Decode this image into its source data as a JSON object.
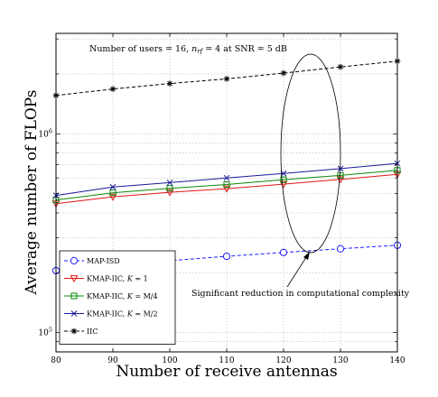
{
  "chart_data": {
    "type": "line",
    "xlabel": "Number of receive antennas",
    "ylabel": "Average number of FLOPs",
    "y_scale": "log",
    "xlim": [
      80,
      140
    ],
    "ylim": [
      80000,
      3200000
    ],
    "x_ticks": [
      80,
      90,
      100,
      110,
      120,
      130,
      140
    ],
    "x_tick_labels": [
      "80",
      "90",
      "100",
      "110",
      "120",
      "130",
      "140"
    ],
    "y_tick_labels": [
      {
        "value": 100000,
        "base": "10",
        "exp": "5"
      },
      {
        "value": 1000000,
        "base": "10",
        "exp": "6"
      }
    ],
    "grid": true,
    "legend_position": "bottom-left",
    "annotation_top": "Number of users = 16, n_rf = 4 at SNR = 5 dB",
    "annotation_arrow": "Significant reduction in computational complexity",
    "x": [
      80,
      90,
      100,
      110,
      120,
      130,
      140
    ],
    "series": [
      {
        "name": "MAP-ISD",
        "color": "#1f1fff",
        "marker": "circle",
        "dash": true,
        "values": [
          205000,
          217000,
          230000,
          242000,
          253000,
          264000,
          275000
        ]
      },
      {
        "name": "KMAP-IIC, K = 1",
        "color": "#e01818",
        "marker": "triangle-down",
        "dash": false,
        "values": [
          445000,
          482000,
          508000,
          530000,
          558000,
          590000,
          625000
        ]
      },
      {
        "name": "KMAP-IIC, K = M/4",
        "color": "#0a8a0a",
        "marker": "square",
        "dash": false,
        "values": [
          465000,
          505000,
          532000,
          556000,
          588000,
          618000,
          655000
        ]
      },
      {
        "name": "KMAP-IIC, K = M/2",
        "color": "#1a1a9a",
        "marker": "x",
        "dash": false,
        "values": [
          490000,
          540000,
          568000,
          600000,
          632000,
          668000,
          710000
        ]
      },
      {
        "name": "IIC",
        "color": "#000000",
        "marker": "star",
        "dash": true,
        "values": [
          1560000,
          1680000,
          1790000,
          1890000,
          2020000,
          2170000,
          2320000
        ]
      }
    ]
  },
  "legend_items": [
    {
      "pre": "MAP-ISD",
      "it": "",
      "post": ""
    },
    {
      "pre": "KMAP-IIC, ",
      "it": "K",
      "post": " = 1"
    },
    {
      "pre": "KMAP-IIC, ",
      "it": "K",
      "post": " = M/4"
    },
    {
      "pre": "KMAP-IIC, ",
      "it": "K",
      "post": " = M/2"
    },
    {
      "pre": "IIC",
      "it": "",
      "post": ""
    }
  ]
}
